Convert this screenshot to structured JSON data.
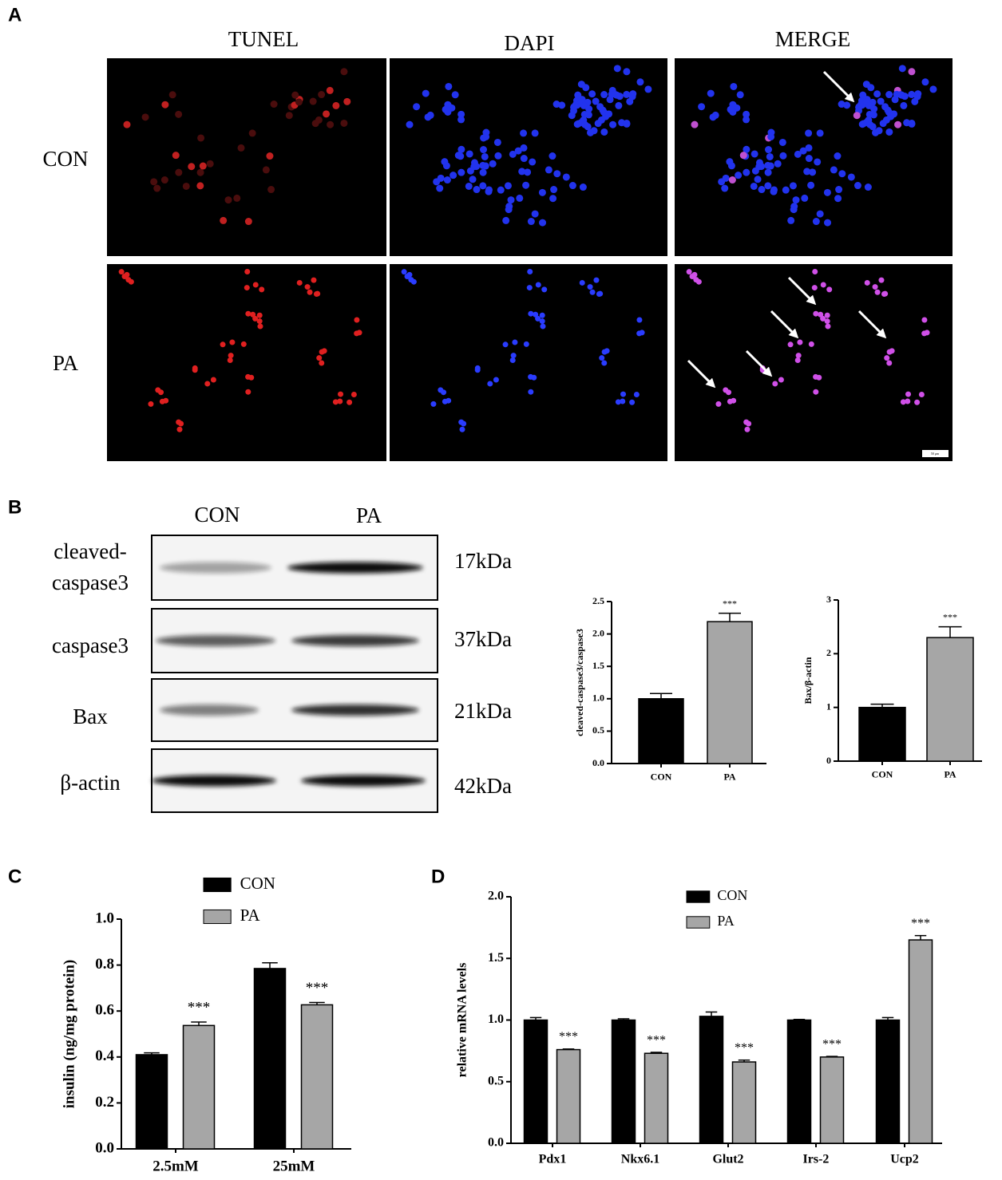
{
  "panel_labels": [
    "A",
    "B",
    "C",
    "D"
  ],
  "microscopy": {
    "columns": [
      "TUNEL",
      "DAPI",
      "MERGE"
    ],
    "rows": [
      "CON",
      "PA"
    ],
    "scale_bar": "50 μm"
  },
  "western_blot": {
    "columns": [
      "CON",
      "PA"
    ],
    "rows": [
      {
        "label": [
          "cleaved-",
          "caspase3"
        ],
        "size": "17kDa"
      },
      {
        "label": [
          "caspase3"
        ],
        "size": "37kDa"
      },
      {
        "label": [
          "Bax"
        ],
        "size": "21kDa"
      },
      {
        "label": [
          "β-actin"
        ],
        "size": "42kDa"
      }
    ]
  },
  "chart_data": [
    {
      "type": "bar",
      "ylabel": "cleaved-caspase3/caspase3",
      "categories": [
        "CON",
        "PA"
      ],
      "values": [
        1.0,
        2.19
      ],
      "errors": [
        0.08,
        0.13
      ],
      "colors": [
        "#000000",
        "#a6a6a6"
      ],
      "significance": [
        null,
        "***"
      ],
      "ylim": [
        0,
        2.5
      ],
      "yticks": [
        {
          "value": 0,
          "label": "0.0"
        },
        0.5,
        {
          "value": 1,
          "label": "1.0"
        },
        1.5,
        {
          "value": 2,
          "label": "2.0"
        },
        2.5
      ]
    },
    {
      "type": "bar",
      "ylabel": "Bax/β-actin",
      "categories": [
        "CON",
        "PA"
      ],
      "values": [
        1.0,
        2.3
      ],
      "errors": [
        0.06,
        0.2
      ],
      "colors": [
        "#000000",
        "#a6a6a6"
      ],
      "significance": [
        null,
        "***"
      ],
      "ylim": [
        0,
        3
      ],
      "yticks": [
        0,
        1,
        2,
        3
      ]
    },
    {
      "type": "bar",
      "ylabel": "insulin (ng/mg protein)",
      "categories": [
        "2.5mM",
        "25mM"
      ],
      "series": [
        {
          "name": "CON",
          "color": "#000000",
          "values": [
            0.41,
            0.785
          ],
          "errors": [
            0.008,
            0.025
          ],
          "significance": [
            null,
            null
          ]
        },
        {
          "name": "PA",
          "color": "#a6a6a6",
          "values": [
            0.537,
            0.627
          ],
          "errors": [
            0.015,
            0.01
          ],
          "significance": [
            "***",
            "***"
          ]
        }
      ],
      "ylim": [
        0,
        1
      ],
      "yticks": [
        {
          "value": 0,
          "label": "0.0"
        },
        0.2,
        0.4,
        0.6,
        0.8,
        {
          "value": 1,
          "label": "1.0"
        }
      ]
    },
    {
      "type": "bar",
      "ylabel": "relative mRNA levels",
      "categories": [
        "Pdx1",
        "Nkx6.1",
        "Glut2",
        "Irs-2",
        "Ucp2"
      ],
      "series": [
        {
          "name": "CON",
          "color": "#000000",
          "values": [
            1.0,
            1.0,
            1.03,
            1.0,
            1.0
          ],
          "errors": [
            0.02,
            0.01,
            0.035,
            0.005,
            0.02
          ],
          "significance": [
            null,
            null,
            null,
            null,
            null
          ]
        },
        {
          "name": "PA",
          "color": "#a6a6a6",
          "values": [
            0.76,
            0.73,
            0.66,
            0.7,
            1.65
          ],
          "errors": [
            0.005,
            0.008,
            0.015,
            0.005,
            0.035
          ],
          "significance": [
            "***",
            "***",
            "***",
            "***",
            "***"
          ]
        }
      ],
      "ylim": [
        0,
        2
      ],
      "yticks": [
        {
          "value": 0,
          "label": "0.0"
        },
        0.5,
        {
          "value": 1,
          "label": "1.0"
        },
        1.5,
        {
          "value": 2,
          "label": "2.0"
        }
      ]
    }
  ]
}
